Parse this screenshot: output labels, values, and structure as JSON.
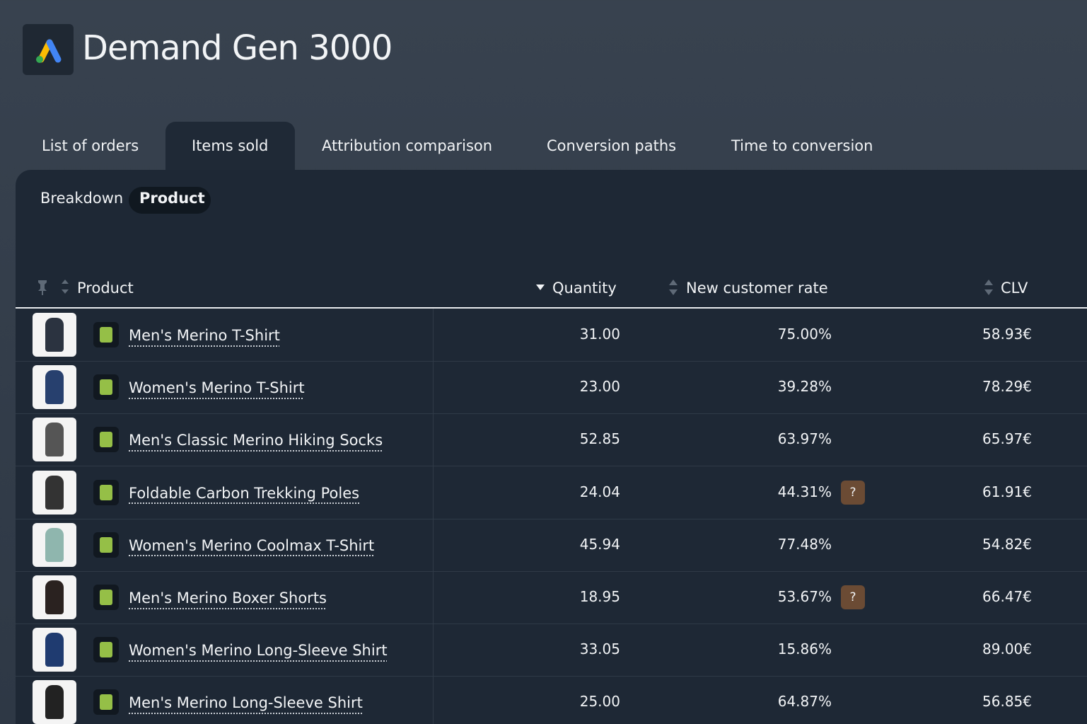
{
  "header": {
    "title": "Demand Gen 3000"
  },
  "tabs": [
    "List of orders",
    "Items sold",
    "Attribution comparison",
    "Conversion paths",
    "Time to conversion"
  ],
  "breakdown": {
    "label": "Breakdown",
    "value": "Product"
  },
  "table": {
    "columns": [
      "Product",
      "Quantity",
      "New customer rate",
      "CLV"
    ],
    "rows": [
      {
        "product": "Men's Merino T-Shirt",
        "quantity": "31.00",
        "rate": "75.00%",
        "clv": "58.93€"
      },
      {
        "product": "Women's Merino T-Shirt",
        "quantity": "23.00",
        "rate": "39.28%",
        "clv": "78.29€"
      },
      {
        "product": "Men's Classic Merino Hiking Socks",
        "quantity": "52.85",
        "rate": "63.97%",
        "clv": "65.97€"
      },
      {
        "product": "Foldable Carbon Trekking Poles",
        "quantity": "24.04",
        "rate": "44.31%",
        "badge": "?",
        "clv": "61.91€"
      },
      {
        "product": "Women's Merino Coolmax T-Shirt",
        "quantity": "45.94",
        "rate": "77.48%",
        "clv": "54.82€"
      },
      {
        "product": "Men's Merino Boxer Shorts",
        "quantity": "18.95",
        "rate": "53.67%",
        "badge": "?",
        "clv": "66.47€"
      },
      {
        "product": "Women's Merino Long-Sleeve Shirt",
        "quantity": "33.05",
        "rate": "15.86%",
        "clv": "89.00€"
      },
      {
        "product": "Men's Merino Long-Sleeve Shirt",
        "quantity": "25.00",
        "rate": "64.87%",
        "clv": "56.85€"
      }
    ]
  }
}
